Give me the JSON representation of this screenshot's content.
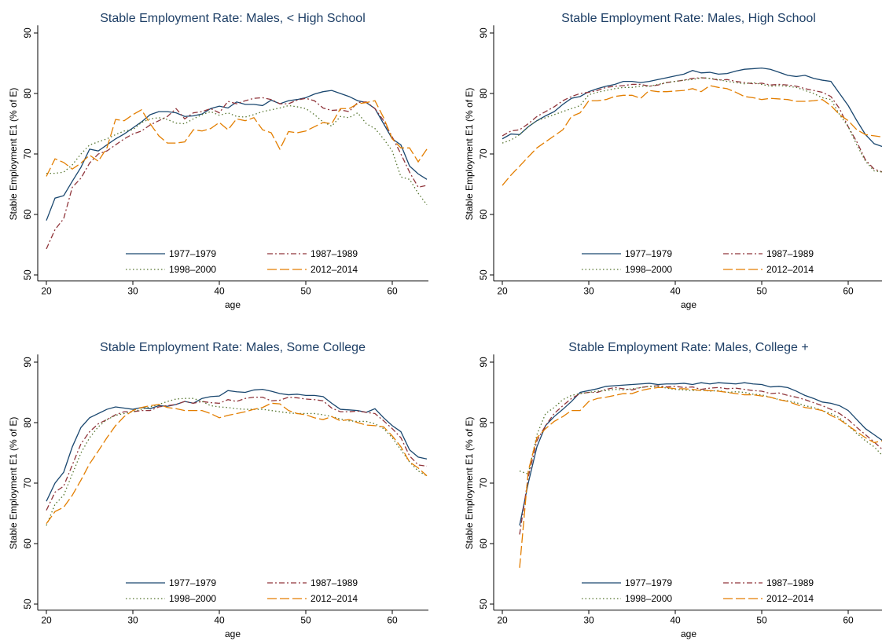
{
  "chart_data": [
    {
      "type": "line",
      "title": "Stable Employment Rate: Males, < High School",
      "xlabel": "age",
      "ylabel": "Stable Employment E1 (% of E)",
      "xlim": [
        19,
        64
      ],
      "ylim": [
        49,
        91
      ],
      "xticks": [
        20,
        30,
        40,
        50,
        60
      ],
      "yticks": [
        50,
        60,
        70,
        80,
        90
      ],
      "x": [
        20,
        21,
        22,
        23,
        24,
        25,
        26,
        27,
        28,
        29,
        30,
        31,
        32,
        33,
        34,
        35,
        36,
        37,
        38,
        39,
        40,
        41,
        42,
        43,
        44,
        45,
        46,
        47,
        48,
        49,
        50,
        51,
        52,
        53,
        54,
        55,
        56,
        57,
        58,
        59,
        60,
        61,
        62,
        63,
        64
      ],
      "series": [
        {
          "name": "1977–1979",
          "color": "#1a476f",
          "dash": "solid",
          "values": [
            59,
            62.7,
            63.1,
            65.5,
            67.8,
            70.8,
            70.5,
            71.5,
            72.5,
            73.3,
            74.3,
            75.3,
            76.5,
            77,
            77,
            76.8,
            76.2,
            76.3,
            76.6,
            77.5,
            77.9,
            77.6,
            78.6,
            78.2,
            78.2,
            78,
            78.9,
            78.3,
            78.8,
            79,
            79.3,
            79.9,
            80.3,
            80.5,
            80,
            79.5,
            78.8,
            78.5,
            77.5,
            75,
            72.5,
            71.5,
            68,
            66.7,
            65.8
          ]
        },
        {
          "name": "1987–1989",
          "color": "#90353b",
          "dash": "dash-dot",
          "values": [
            54.3,
            57.5,
            59.3,
            64.5,
            66,
            68.5,
            70,
            70.5,
            71.5,
            72.5,
            73.3,
            73.8,
            74.8,
            75.5,
            76.2,
            77.5,
            75.8,
            76.8,
            77,
            77.5,
            76.8,
            78.7,
            78.3,
            78.8,
            79.2,
            79.3,
            79,
            78.3,
            78.3,
            78.9,
            79.2,
            78.8,
            77.6,
            77.2,
            77.3,
            77,
            78.5,
            78.6,
            77.5,
            75.5,
            72.8,
            70,
            67,
            64.5,
            64.8
          ]
        },
        {
          "name": "1998–2000",
          "color": "#55752f",
          "dash": "dot",
          "values": [
            66.8,
            66.8,
            67,
            68.2,
            70,
            71.5,
            72,
            72.5,
            73.2,
            73.8,
            74,
            75.2,
            75.8,
            76,
            75.7,
            75.1,
            75,
            75.8,
            76.5,
            77,
            76.4,
            76.8,
            76.2,
            76.1,
            76.5,
            77,
            77.3,
            77.6,
            78,
            77.8,
            77.5,
            76.5,
            75.3,
            74.6,
            76.2,
            76,
            76.8,
            75,
            74.2,
            72.5,
            70.5,
            66.2,
            65.8,
            63.5,
            61.6
          ]
        },
        {
          "name": "2012–2014",
          "color": "#e37e00",
          "dash": "long-dash",
          "values": [
            66.3,
            69.2,
            68.6,
            67.5,
            68.5,
            69.8,
            68.8,
            71,
            75.7,
            75.5,
            76.5,
            77.3,
            75,
            73,
            71.8,
            71.8,
            72,
            74,
            73.8,
            74.2,
            75.2,
            74,
            75.8,
            75.5,
            76,
            74,
            73.5,
            70.8,
            73.7,
            73.5,
            73.8,
            74.5,
            75.2,
            75,
            77.5,
            77.5,
            78.3,
            78.5,
            78.8,
            76,
            72.5,
            71,
            71,
            68.7,
            70.8
          ]
        }
      ]
    },
    {
      "type": "line",
      "title": "Stable Employment Rate: Males, High School",
      "xlabel": "age",
      "ylabel": "Stable Employment E1 (% of E)",
      "xlim": [
        19,
        64
      ],
      "ylim": [
        49,
        91
      ],
      "xticks": [
        20,
        30,
        40,
        50,
        60
      ],
      "yticks": [
        50,
        60,
        70,
        80,
        90
      ],
      "x": [
        20,
        21,
        22,
        23,
        24,
        25,
        26,
        27,
        28,
        29,
        30,
        31,
        32,
        33,
        34,
        35,
        36,
        37,
        38,
        39,
        40,
        41,
        42,
        43,
        44,
        45,
        46,
        47,
        48,
        49,
        50,
        51,
        52,
        53,
        54,
        55,
        56,
        57,
        58,
        59,
        60,
        61,
        62,
        63,
        64
      ],
      "series": [
        {
          "name": "1977–1979",
          "color": "#1a476f",
          "dash": "solid",
          "values": [
            72.5,
            73.3,
            73.2,
            74.5,
            75.5,
            76.3,
            77,
            78.2,
            79.2,
            79.5,
            80.3,
            80.8,
            81.2,
            81.5,
            82,
            82,
            81.8,
            82,
            82.3,
            82.6,
            82.9,
            83.2,
            83.8,
            83.4,
            83.5,
            83.2,
            83.3,
            83.7,
            84,
            84.1,
            84.2,
            84,
            83.5,
            83,
            82.8,
            83,
            82.5,
            82.2,
            82,
            80,
            78,
            75.5,
            73.2,
            71.7,
            71.2
          ]
        },
        {
          "name": "1987–1989",
          "color": "#90353b",
          "dash": "dash-dot",
          "values": [
            73,
            73.8,
            74,
            75,
            76.2,
            77,
            77.8,
            78.8,
            79.5,
            80,
            80.2,
            80.5,
            81,
            81.2,
            81.3,
            81.5,
            81.5,
            81.2,
            81.4,
            81.8,
            82,
            82.2,
            82.5,
            82.6,
            82.5,
            82.2,
            82.3,
            82,
            81.8,
            81.6,
            81.7,
            81.4,
            81.5,
            81.4,
            81.2,
            80.8,
            80.5,
            80.2,
            79.5,
            77.5,
            74.5,
            72,
            69,
            67.5,
            67
          ]
        },
        {
          "name": "1998–2000",
          "color": "#55752f",
          "dash": "dot",
          "values": [
            71.8,
            72.3,
            73.2,
            74.5,
            75.5,
            76,
            76.5,
            77,
            77.5,
            78,
            79.8,
            80.2,
            80.5,
            80.8,
            81,
            81,
            81.2,
            81.2,
            81.5,
            81.8,
            82,
            82.2,
            82.3,
            82.6,
            82.5,
            82.3,
            82,
            81.8,
            81.6,
            81.8,
            81.5,
            81.2,
            81.3,
            81.2,
            81,
            80.5,
            80,
            79.3,
            79,
            76.5,
            74.5,
            71.5,
            68.8,
            67.2,
            67
          ]
        },
        {
          "name": "2012–2014",
          "color": "#e37e00",
          "dash": "long-dash",
          "values": [
            64.8,
            66.5,
            68,
            69.5,
            71,
            72,
            73,
            74,
            76.2,
            76.8,
            78.8,
            78.8,
            79,
            79.5,
            79.7,
            79.7,
            79.2,
            80.5,
            80.3,
            80.3,
            80.4,
            80.5,
            80.8,
            80.3,
            81.3,
            81,
            80.8,
            80.2,
            79.5,
            79.3,
            79,
            79.2,
            79.1,
            79,
            78.7,
            78.7,
            78.8,
            79,
            78,
            76.5,
            75.5,
            74,
            73.2,
            73,
            72.8
          ]
        }
      ]
    },
    {
      "type": "line",
      "title": "Stable Employment Rate: Males, Some College",
      "xlabel": "age",
      "ylabel": "Stable Employment E1 (% of E)",
      "xlim": [
        19,
        64
      ],
      "ylim": [
        49,
        91
      ],
      "xticks": [
        20,
        30,
        40,
        50,
        60
      ],
      "yticks": [
        50,
        60,
        70,
        80,
        90
      ],
      "x": [
        20,
        21,
        22,
        23,
        24,
        25,
        26,
        27,
        28,
        29,
        30,
        31,
        32,
        33,
        34,
        35,
        36,
        37,
        38,
        39,
        40,
        41,
        42,
        43,
        44,
        45,
        46,
        47,
        48,
        49,
        50,
        51,
        52,
        53,
        54,
        55,
        56,
        57,
        58,
        59,
        60,
        61,
        62,
        63,
        64
      ],
      "series": [
        {
          "name": "1977–1979",
          "color": "#1a476f",
          "dash": "solid",
          "values": [
            67,
            70,
            71.8,
            76,
            79.2,
            80.8,
            81.5,
            82.2,
            82.6,
            82.4,
            82.2,
            82.5,
            82.3,
            82.8,
            82.7,
            83,
            83.5,
            83.2,
            84,
            84.3,
            84.4,
            85.3,
            85.1,
            85,
            85.4,
            85.5,
            85.2,
            84.8,
            84.6,
            84.7,
            84.5,
            84.5,
            84.3,
            83.2,
            82.2,
            82.1,
            82,
            81.7,
            82.3,
            80.8,
            79.5,
            78.5,
            75.5,
            74.3,
            74
          ]
        },
        {
          "name": "1987–1989",
          "color": "#90353b",
          "dash": "dash-dot",
          "values": [
            65.5,
            68.5,
            69.5,
            73,
            76.5,
            78.5,
            79.8,
            80.5,
            81.3,
            81.8,
            81.8,
            82,
            82,
            82.6,
            82.8,
            83,
            83.5,
            83.2,
            83.5,
            83.3,
            83.2,
            83.8,
            83.5,
            84,
            84.2,
            84.2,
            83.6,
            83.7,
            84.2,
            84.1,
            83.9,
            83.8,
            83.6,
            82.4,
            81.8,
            81.8,
            81.9,
            81.7,
            81.5,
            80.3,
            79,
            77.5,
            74.5,
            73,
            72.8
          ]
        },
        {
          "name": "1998–2000",
          "color": "#55752f",
          "dash": "dot",
          "values": [
            63,
            66.5,
            68,
            71.5,
            75,
            77.5,
            79.3,
            80.5,
            81.2,
            81.5,
            81.8,
            82.2,
            82.6,
            83,
            83.5,
            83.9,
            84,
            84,
            83.5,
            82.8,
            82.6,
            82.5,
            82.3,
            82.2,
            82.2,
            82.2,
            82,
            81.8,
            81.6,
            81.5,
            81.5,
            81.5,
            81.3,
            81,
            80.6,
            80.3,
            80.2,
            80.2,
            79.8,
            79,
            77.5,
            75.5,
            73.5,
            72,
            71.2
          ]
        },
        {
          "name": "2012–2014",
          "color": "#e37e00",
          "dash": "long-dash",
          "values": [
            63.3,
            65.3,
            66,
            68,
            70.5,
            73.2,
            75.3,
            77.5,
            79.5,
            81,
            82,
            82.5,
            82.8,
            83,
            82.5,
            82.3,
            82,
            82,
            82,
            81.5,
            80.8,
            81.2,
            81.5,
            81.8,
            82.2,
            82.5,
            83.2,
            83.1,
            82,
            81.5,
            81.3,
            80.8,
            80.5,
            81,
            80.3,
            80.5,
            80,
            79.6,
            79.5,
            79.3,
            77.8,
            76,
            73.5,
            72.5,
            71.2
          ]
        }
      ]
    },
    {
      "type": "line",
      "title": "Stable Employment Rate: Males, College +",
      "xlabel": "age",
      "ylabel": "Stable Employment E1 (% of E)",
      "xlim": [
        19,
        64
      ],
      "ylim": [
        49,
        91
      ],
      "xticks": [
        20,
        30,
        40,
        50,
        60
      ],
      "yticks": [
        50,
        60,
        70,
        80,
        90
      ],
      "x": [
        22,
        23,
        24,
        25,
        26,
        27,
        28,
        29,
        30,
        31,
        32,
        33,
        34,
        35,
        36,
        37,
        38,
        39,
        40,
        41,
        42,
        43,
        44,
        45,
        46,
        47,
        48,
        49,
        50,
        51,
        52,
        53,
        54,
        55,
        56,
        57,
        58,
        59,
        60,
        61,
        62,
        63,
        64
      ],
      "series": [
        {
          "name": "1977–1979",
          "color": "#1a476f",
          "dash": "solid",
          "values": [
            63,
            70,
            76,
            79.5,
            81,
            82.2,
            83.5,
            85,
            85.3,
            85.6,
            86,
            86.1,
            86.2,
            86.3,
            86.4,
            86.5,
            86.3,
            86.4,
            86.4,
            86.5,
            86.3,
            86.6,
            86.4,
            86.6,
            86.5,
            86.4,
            86.6,
            86.4,
            86.3,
            85.9,
            86,
            85.8,
            85.2,
            84.5,
            84,
            83.4,
            83.2,
            82.8,
            82,
            80.5,
            79,
            78,
            77
          ]
        },
        {
          "name": "1987–1989",
          "color": "#90353b",
          "dash": "dash-dot",
          "values": [
            61.5,
            71,
            77,
            79.5,
            81.5,
            82.8,
            84,
            84.8,
            85,
            85,
            85.5,
            85.8,
            85.6,
            85.4,
            85.8,
            86,
            86.1,
            85.9,
            86,
            85.8,
            85.9,
            85.5,
            85.7,
            85.8,
            85.6,
            85.7,
            85.5,
            85.3,
            85.2,
            84.8,
            84.9,
            84.5,
            84.2,
            83.8,
            83.3,
            82.8,
            82.2,
            81.5,
            80.5,
            79.2,
            78,
            76.8,
            75.5
          ]
        },
        {
          "name": "1998–2000",
          "color": "#55752f",
          "dash": "dot",
          "values": [
            72,
            71.5,
            78,
            81.5,
            82.5,
            83.8,
            84.5,
            84.8,
            85,
            85.2,
            85.3,
            85.5,
            85.4,
            85.6,
            85.8,
            86,
            86,
            85.7,
            85.5,
            85.4,
            85.3,
            85.4,
            85.2,
            85.3,
            85,
            85.1,
            85,
            84.7,
            84.6,
            84.2,
            83.8,
            83.6,
            83.3,
            82.8,
            82.5,
            82,
            81.5,
            80.8,
            79.5,
            78.2,
            77,
            76,
            74.5
          ]
        },
        {
          "name": "2012–2014",
          "color": "#e37e00",
          "dash": "long-dash",
          "values": [
            56,
            72,
            77.5,
            79,
            80.2,
            81,
            82,
            82,
            83.5,
            84,
            84.2,
            84.5,
            84.8,
            84.8,
            85.3,
            85.6,
            85.8,
            85.8,
            85.6,
            85.6,
            85.5,
            85.3,
            85.3,
            85.2,
            85,
            84.8,
            84.6,
            84.6,
            84.4,
            84.2,
            83.8,
            83.5,
            83,
            82.5,
            82.3,
            82,
            81.2,
            80.5,
            79.5,
            78.5,
            77.5,
            76.7,
            77
          ]
        }
      ]
    }
  ]
}
